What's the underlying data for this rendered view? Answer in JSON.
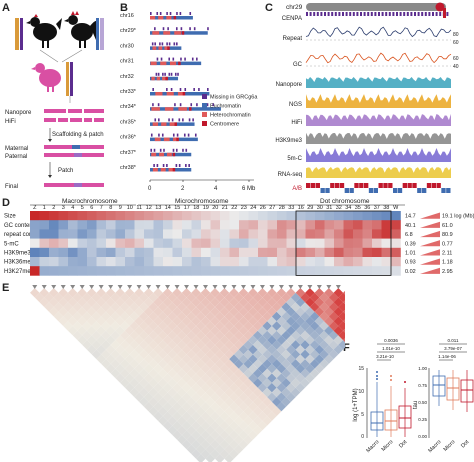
{
  "panels": {
    "a": "A",
    "b": "B",
    "c": "C",
    "d": "D",
    "e": "E",
    "f": "F"
  },
  "panelA": {
    "labels": [
      "Nanopore",
      "HiFi",
      "Scaffolding & patch",
      "Maternal",
      "Paternal",
      "Patch",
      "Final"
    ]
  },
  "panelB": {
    "chromosomes": [
      "chr16",
      "chr29*",
      "chr30",
      "chr31",
      "chr32",
      "chr33*",
      "chr34*",
      "chr35*",
      "chr36*",
      "chr37*",
      "chr38*"
    ],
    "legend": [
      "Missing in GRCg6a",
      "Euchromatin",
      "Heterochromatin",
      "Centromere"
    ],
    "legend_colors": [
      "#5b2d8e",
      "#3f6cb0",
      "#e05a5a",
      "#c0182c"
    ],
    "axis_ticks": [
      "0",
      "2",
      "4",
      "6 Mb"
    ]
  },
  "panelC": {
    "title": "chr29",
    "tracks": [
      "CENPA",
      "Repeat",
      "GC",
      "Nanopore",
      "NGS",
      "HiFi",
      "H3K9me3",
      "5m-C",
      "RNA-seq",
      "A/B"
    ],
    "track_colors": [
      "#5b2d8e",
      "#2e3f6f",
      "#d9531e",
      "#2b9cb6",
      "#e8a010",
      "#9b6bc4",
      "#7a7a7a",
      "#6a5acd",
      "#e8c020",
      "#3f6cb0"
    ],
    "repeat_ticks": [
      "80",
      "60"
    ],
    "gc_ticks": [
      "60",
      "40"
    ]
  },
  "panelD": {
    "group_labels": [
      "Macrochromosome",
      "Microchromosome",
      "Dot chromosome"
    ],
    "columns": [
      "Z",
      "1",
      "2",
      "3",
      "4",
      "5",
      "6",
      "7",
      "8",
      "9",
      "10",
      "11",
      "12",
      "13",
      "14",
      "15",
      "17",
      "18",
      "19",
      "20",
      "21",
      "22",
      "23",
      "24",
      "26",
      "27",
      "28",
      "33",
      "16",
      "29",
      "30",
      "31",
      "32",
      "34",
      "35",
      "36",
      "37",
      "38",
      "W"
    ],
    "rows": [
      "Size",
      "GC content",
      "repeat content",
      "5-mC",
      "H3K9me3",
      "H3K36me3",
      "H3K27me3"
    ],
    "scale_min": [
      "14.7",
      "40.1",
      "6.8",
      "0.39",
      "1.01",
      "0.93",
      "0.02"
    ],
    "scale_max": [
      "19.1 log (Mb)",
      "61.0",
      "80.9",
      "0.77",
      "2.11",
      "1.18",
      "2.95"
    ]
  },
  "panelF": {
    "left": {
      "ylabel": "log (1+TPM)",
      "groups": [
        "Macro",
        "Micro",
        "Dot"
      ],
      "yticks": [
        "0",
        "5",
        "10",
        "15"
      ],
      "pvalues": [
        "0.0036",
        "1.01e-10",
        "3.21e-10"
      ],
      "colors": [
        "#3f6cb0",
        "#e07a5a",
        "#c0182c"
      ]
    },
    "right": {
      "ylabel": "tau",
      "groups": [
        "Macro",
        "Micro",
        "Dot"
      ],
      "yticks": [
        "0.00",
        "0.25",
        "0.50",
        "0.75",
        "1.00"
      ],
      "pvalues": [
        "0.011",
        "3.79e-07",
        "1.14e-06"
      ],
      "colors": [
        "#3f6cb0",
        "#e07a5a",
        "#c0182c"
      ]
    }
  }
}
